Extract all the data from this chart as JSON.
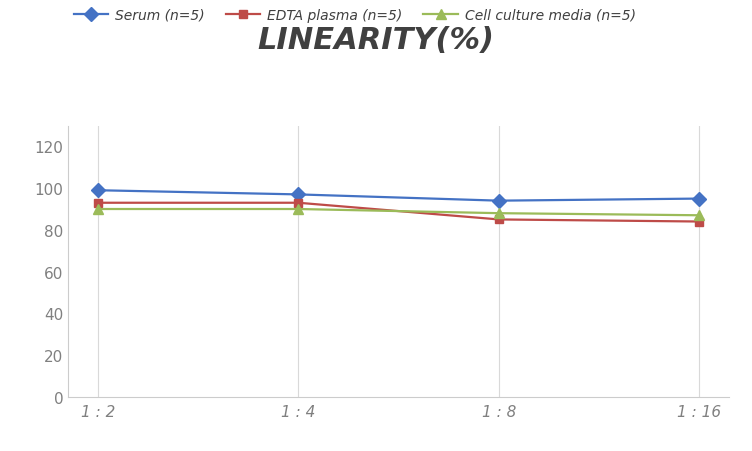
{
  "title": "LINEARITY(%)",
  "x_labels": [
    "1 : 2",
    "1 : 4",
    "1 : 8",
    "1 : 16"
  ],
  "x_positions": [
    0,
    1,
    2,
    3
  ],
  "series": [
    {
      "label": "Serum (n=5)",
      "values": [
        99,
        97,
        94,
        95
      ],
      "color": "#4472C4",
      "marker": "D",
      "markersize": 7,
      "linewidth": 1.6
    },
    {
      "label": "EDTA plasma (n=5)",
      "values": [
        93,
        93,
        85,
        84
      ],
      "color": "#BE4B48",
      "marker": "s",
      "markersize": 6,
      "linewidth": 1.6
    },
    {
      "label": "Cell culture media (n=5)",
      "values": [
        90,
        90,
        88,
        87
      ],
      "color": "#9BBB59",
      "marker": "^",
      "markersize": 7,
      "linewidth": 1.6
    }
  ],
  "ylim": [
    0,
    130
  ],
  "yticks": [
    0,
    20,
    40,
    60,
    80,
    100,
    120
  ],
  "background_color": "#FFFFFF",
  "grid_color": "#D9D9D9",
  "title_fontsize": 22,
  "title_fontstyle": "italic",
  "title_fontweight": "bold",
  "legend_fontsize": 10,
  "tick_fontsize": 11,
  "tick_color": "#808080"
}
